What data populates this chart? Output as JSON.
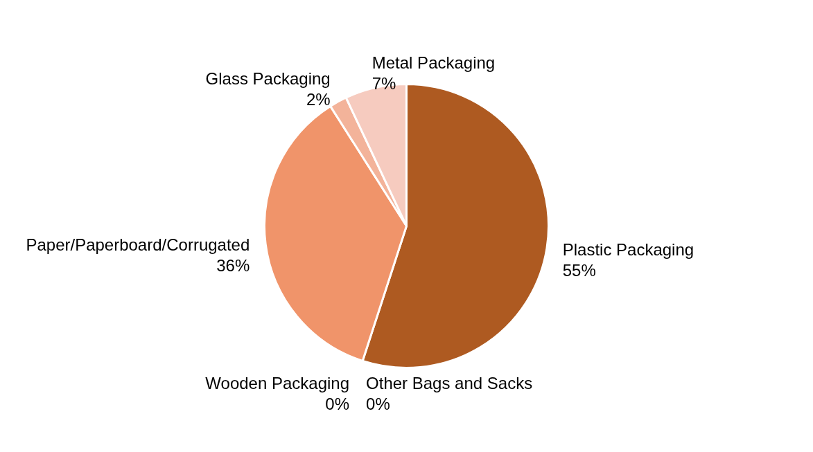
{
  "chart_data": {
    "type": "pie",
    "categories": [
      "Plastic Packaging",
      "Other Bags and Sacks",
      "Wooden Packaging",
      "Paper/Paperboard/Corrugated",
      "Glass Packaging",
      "Metal Packaging"
    ],
    "values": [
      55,
      0,
      0,
      36,
      2,
      7
    ],
    "colors": [
      "#ae5a21",
      "#c46a35",
      "#d97d4c",
      "#f0946a",
      "#f3b39a",
      "#f6cbbf"
    ],
    "value_labels": [
      "55%",
      "0%",
      "0%",
      "36%",
      "2%",
      "7%"
    ]
  }
}
